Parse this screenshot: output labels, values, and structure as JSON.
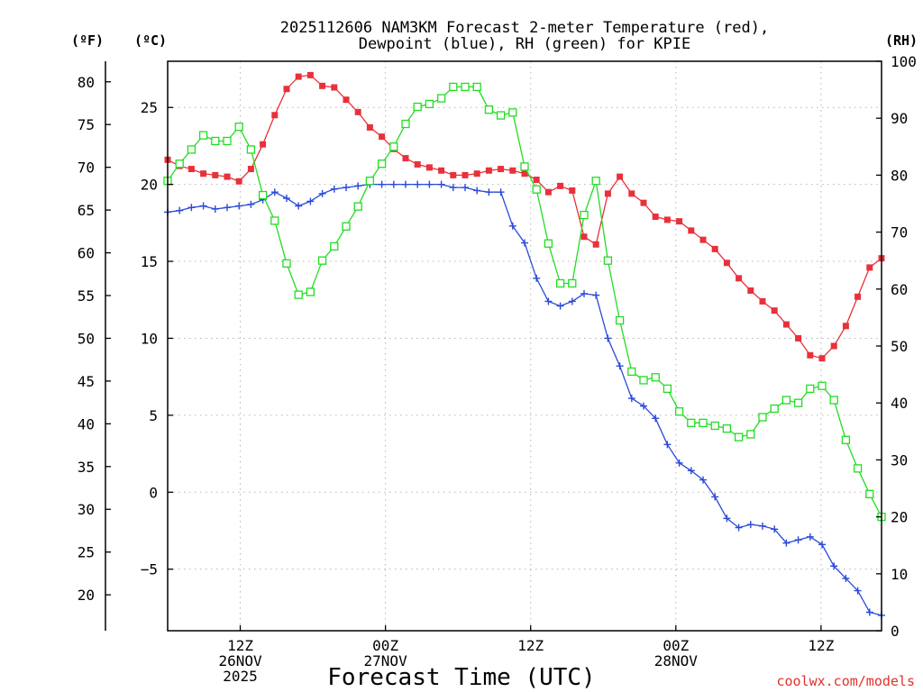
{
  "chart_data": {
    "type": "line",
    "title_lines": [
      "2025112606 NAM3KM Forecast 2-meter Temperature (red),",
      "Dewpoint (blue), RH (green) for KPIE"
    ],
    "xlabel": "Forecast Time (UTC)",
    "watermark": "coolwx.com/models",
    "units": {
      "left_outer": "(ºF)",
      "left_inner": "(ºC)",
      "right": "(RH)"
    },
    "x_range_hours": [
      0,
      59
    ],
    "x_ticks": [
      {
        "hour": 6,
        "lines": [
          "12Z",
          "26NOV",
          "2025"
        ]
      },
      {
        "hour": 18,
        "lines": [
          "00Z",
          "27NOV"
        ]
      },
      {
        "hour": 30,
        "lines": [
          "12Z"
        ]
      },
      {
        "hour": 42,
        "lines": [
          "00Z",
          "28NOV"
        ]
      },
      {
        "hour": 54,
        "lines": [
          "12Z"
        ]
      }
    ],
    "celsius_axis": {
      "range": [
        -9,
        28
      ],
      "ticks": [
        -5,
        0,
        5,
        10,
        15,
        20,
        25
      ],
      "tick_labels": [
        "−5",
        "0",
        "5",
        "10",
        "15",
        "20",
        "25"
      ]
    },
    "fahrenheit_axis": {
      "ticks": [
        20,
        25,
        30,
        35,
        40,
        45,
        50,
        55,
        60,
        65,
        70,
        75,
        80
      ]
    },
    "rh_axis": {
      "range": [
        0,
        100
      ],
      "ticks": [
        0,
        10,
        20,
        30,
        40,
        50,
        60,
        70,
        80,
        90,
        100
      ]
    },
    "series": [
      {
        "name": "2-meter Temperature (°C)",
        "color": "#e8313a",
        "marker": "filled-square",
        "axis": "celsius",
        "values": [
          21.6,
          21.2,
          21.0,
          20.7,
          20.6,
          20.5,
          20.2,
          21.0,
          22.6,
          24.5,
          26.2,
          27.0,
          27.1,
          26.4,
          26.3,
          25.5,
          24.7,
          23.7,
          23.1,
          22.3,
          21.7,
          21.3,
          21.1,
          20.9,
          20.6,
          20.6,
          20.7,
          20.9,
          21.0,
          20.9,
          20.7,
          20.3,
          19.5,
          19.9,
          19.6,
          16.6,
          16.1,
          19.4,
          20.5,
          19.4,
          18.8,
          17.9,
          17.7,
          17.6,
          17.0,
          16.4,
          15.8,
          14.9,
          13.9,
          13.1,
          12.4,
          11.8,
          10.9,
          10.0,
          8.9,
          8.7,
          9.5,
          10.8,
          12.7,
          14.6,
          15.2
        ],
        "label_units_note": "values in degrees C"
      },
      {
        "name": "Dewpoint (°C)",
        "color": "#2a49d9",
        "marker": "plus",
        "axis": "celsius",
        "values": [
          18.2,
          18.3,
          18.5,
          18.6,
          18.4,
          18.5,
          18.6,
          18.7,
          19.0,
          19.5,
          19.1,
          18.6,
          18.9,
          19.4,
          19.7,
          19.8,
          19.9,
          20.0,
          20.0,
          20.0,
          20.0,
          20.0,
          20.0,
          20.0,
          19.8,
          19.8,
          19.6,
          19.5,
          19.5,
          17.3,
          16.2,
          13.9,
          12.4,
          12.1,
          12.4,
          12.9,
          12.8,
          10.0,
          8.2,
          6.1,
          5.6,
          4.8,
          3.1,
          1.9,
          1.4,
          0.8,
          -0.3,
          -1.7,
          -2.3,
          -2.1,
          -2.2,
          -2.4,
          -3.3,
          -3.1,
          -2.9,
          -3.4,
          -4.8,
          -5.6,
          -6.4,
          -7.8,
          -8.0
        ]
      },
      {
        "name": "RH (%)",
        "color": "#22dd22",
        "marker": "open-square",
        "axis": "rh",
        "values": [
          79,
          82,
          84.5,
          87,
          86,
          86,
          88.5,
          84.5,
          76.5,
          72,
          64.5,
          59,
          59.5,
          65,
          67.5,
          71,
          74.5,
          79,
          82,
          85,
          89,
          92,
          92.5,
          93.5,
          95.5,
          95.5,
          95.5,
          91.5,
          90.5,
          91,
          81.5,
          77.5,
          68,
          61,
          61,
          73,
          79,
          65,
          54.5,
          45.5,
          44,
          44.5,
          42.5,
          38.5,
          36.5,
          36.5,
          36,
          35.5,
          34,
          34.5,
          37.5,
          39,
          40.5,
          40,
          42.5,
          43,
          40.5,
          33.5,
          28.5,
          24,
          20
        ]
      }
    ]
  }
}
